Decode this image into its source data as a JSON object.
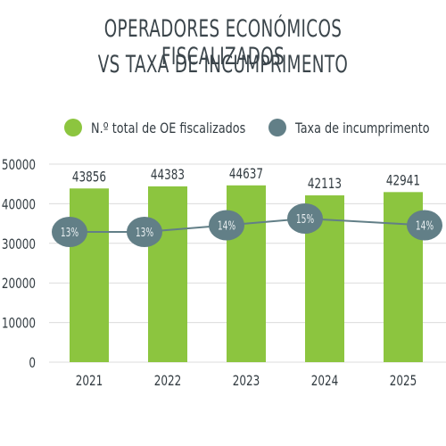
{
  "title_lines": [
    "OPERADORES ECONÓMICOS FISCALIZADOS",
    "VS TAXA DE INCUMPRIMENTO"
  ],
  "legend": [
    {
      "label": "N.º total de OE fiscalizados",
      "color": "#8cc53f"
    },
    {
      "label": "Taxa de incumprimento",
      "color": "#627f87"
    }
  ],
  "colors": {
    "bar": "#8cc53f",
    "line": "#627f87",
    "marker": "#627f87",
    "marker_text": "#e8eef0",
    "grid": "#dcdcdc",
    "text": "#333c42"
  },
  "chart_data": {
    "type": "bar",
    "title": "OPERADORES ECONÓMICOS FISCALIZADOS VS TAXA DE INCUMPRIMENTO",
    "categories": [
      "2021",
      "2022",
      "2023",
      "2024",
      "2025"
    ],
    "series": [
      {
        "name": "N.º total de OE fiscalizados",
        "type": "bar",
        "values": [
          43856,
          44383,
          44637,
          42113,
          42941
        ],
        "value_labels": [
          "43856",
          "44383",
          "44637",
          "42113",
          "42941"
        ]
      },
      {
        "name": "Taxa de incumprimento",
        "type": "line",
        "values": [
          13,
          13,
          14,
          15,
          14
        ],
        "value_labels": [
          "13%",
          "13%",
          "14%",
          "15%",
          "14%"
        ]
      }
    ],
    "y_ticks": [
      "0",
      "10000",
      "20000",
      "30000",
      "40000",
      "50000"
    ],
    "ylim": [
      0,
      50000
    ],
    "grid": true,
    "legend_position": "top"
  }
}
